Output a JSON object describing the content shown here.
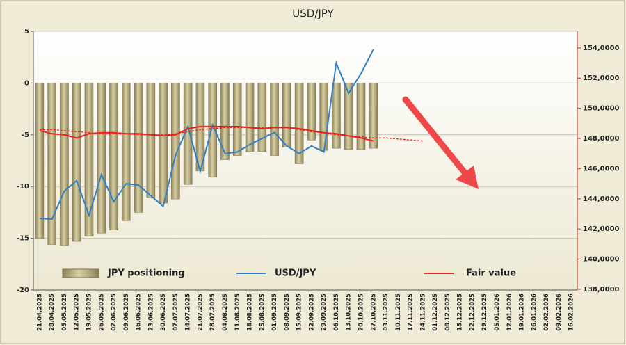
{
  "chart_data": {
    "type": "bar_line",
    "title": "USD/JPY",
    "categories": [
      "21.04.2025",
      "28.04.2025",
      "05.05.2025",
      "12.05.2025",
      "19.05.2025",
      "26.05.2025",
      "02.06.2025",
      "09.06.2025",
      "16.06.2025",
      "23.06.2025",
      "30.06.2025",
      "07.07.2025",
      "14.07.2025",
      "21.07.2025",
      "28.07.2025",
      "04.08.2025",
      "11.08.2025",
      "18.08.2025",
      "25.08.2025",
      "01.09.2025",
      "08.09.2025",
      "15.09.2025",
      "22.09.2025",
      "29.09.2025",
      "06.10.2025",
      "13.10.2025",
      "20.10.2025",
      "27.10.2025",
      "03.11.2025",
      "10.11.2025",
      "17.11.2025",
      "24.11.2025",
      "01.12.2025",
      "08.12.2025",
      "15.12.2025",
      "22.12.2025",
      "29.12.2025",
      "05.01.2026",
      "12.01.2026",
      "19.01.2026",
      "26.01.2026",
      "02.02.2026",
      "09.02.2026",
      "16.02.2026"
    ],
    "series": [
      {
        "name": "JPY positioning",
        "kind": "bar",
        "color": "#b5ab7c",
        "axis": "y",
        "values": [
          -15.0,
          -15.6,
          -15.7,
          -15.3,
          -14.8,
          -14.5,
          -14.2,
          -13.3,
          -12.5,
          -11.1,
          -11.6,
          -11.2,
          -9.8,
          -8.5,
          -9.1,
          -7.4,
          -7.0,
          -6.6,
          -6.6,
          -7.0,
          -6.2,
          -7.8,
          -5.5,
          -6.5,
          -6.3,
          -6.4,
          -6.4,
          -6.3,
          null,
          null,
          null,
          null,
          null,
          null,
          null,
          null,
          null,
          null,
          null,
          null,
          null,
          null,
          null,
          null
        ]
      },
      {
        "name": "USD/JPY",
        "kind": "line",
        "color": "#2f80c4",
        "axis": "y2",
        "values": [
          142700,
          142650,
          144500,
          145200,
          142900,
          145600,
          143800,
          145000,
          144900,
          144200,
          143500,
          146900,
          148800,
          145800,
          148900,
          147000,
          147100,
          147600,
          148000,
          148400,
          147500,
          147000,
          147500,
          147100,
          153000,
          151000,
          152300,
          153900,
          null,
          null,
          null,
          null,
          null,
          null,
          null,
          null,
          null,
          null,
          null,
          null,
          null,
          null,
          null,
          null
        ]
      },
      {
        "name": "Fair value",
        "kind": "line",
        "color": "#e8241c",
        "axis": "y",
        "values": [
          -4.6,
          -4.9,
          -5.0,
          -5.3,
          -4.9,
          -4.8,
          -4.8,
          -4.9,
          -4.9,
          -5.0,
          -5.1,
          -5.0,
          -4.4,
          -4.2,
          -4.2,
          -4.2,
          -4.2,
          -4.3,
          -4.4,
          -4.3,
          -4.3,
          -4.4,
          -4.6,
          -4.8,
          -4.9,
          -5.1,
          -5.3,
          -5.6,
          null,
          null,
          null,
          null,
          null,
          null,
          null,
          null,
          null,
          null,
          null,
          null,
          null,
          null,
          null,
          null
        ]
      },
      {
        "kind": "dashed",
        "color": "#e8241c",
        "axis": "y",
        "values": [
          -4.5,
          -4.5,
          -4.6,
          -4.7,
          -4.8,
          -4.9,
          -4.9,
          -4.9,
          -5.0,
          -5.0,
          -5.0,
          -4.9,
          -4.7,
          -4.5,
          -4.4,
          -4.3,
          -4.3,
          -4.3,
          -4.3,
          -4.3,
          -4.3,
          -4.5,
          -4.7,
          -4.8,
          -5.0,
          -5.1,
          -5.2,
          -5.3,
          -5.3,
          -5.4,
          -5.5,
          -5.6,
          null,
          null,
          null,
          null,
          null,
          null,
          null,
          null,
          null,
          null,
          null,
          null
        ]
      }
    ],
    "ylim": [
      5,
      -20
    ],
    "yticks": [
      5,
      0,
      -5,
      -10,
      -15,
      -20
    ],
    "y2lim": [
      137950,
      155100
    ],
    "y2ticks": [
      {
        "value": 154000,
        "label": "154,0000"
      },
      {
        "value": 152000,
        "label": "152,0000"
      },
      {
        "value": 150000,
        "label": "150,0000"
      },
      {
        "value": 148000,
        "label": "148,0000"
      },
      {
        "value": 146000,
        "label": "146,0000"
      },
      {
        "value": 144000,
        "label": "144,0000"
      },
      {
        "value": 142000,
        "label": "142,0000"
      },
      {
        "value": 140000,
        "label": "140,0000"
      },
      {
        "value": 138000,
        "label": "138,0000"
      }
    ],
    "grid": true
  }
}
